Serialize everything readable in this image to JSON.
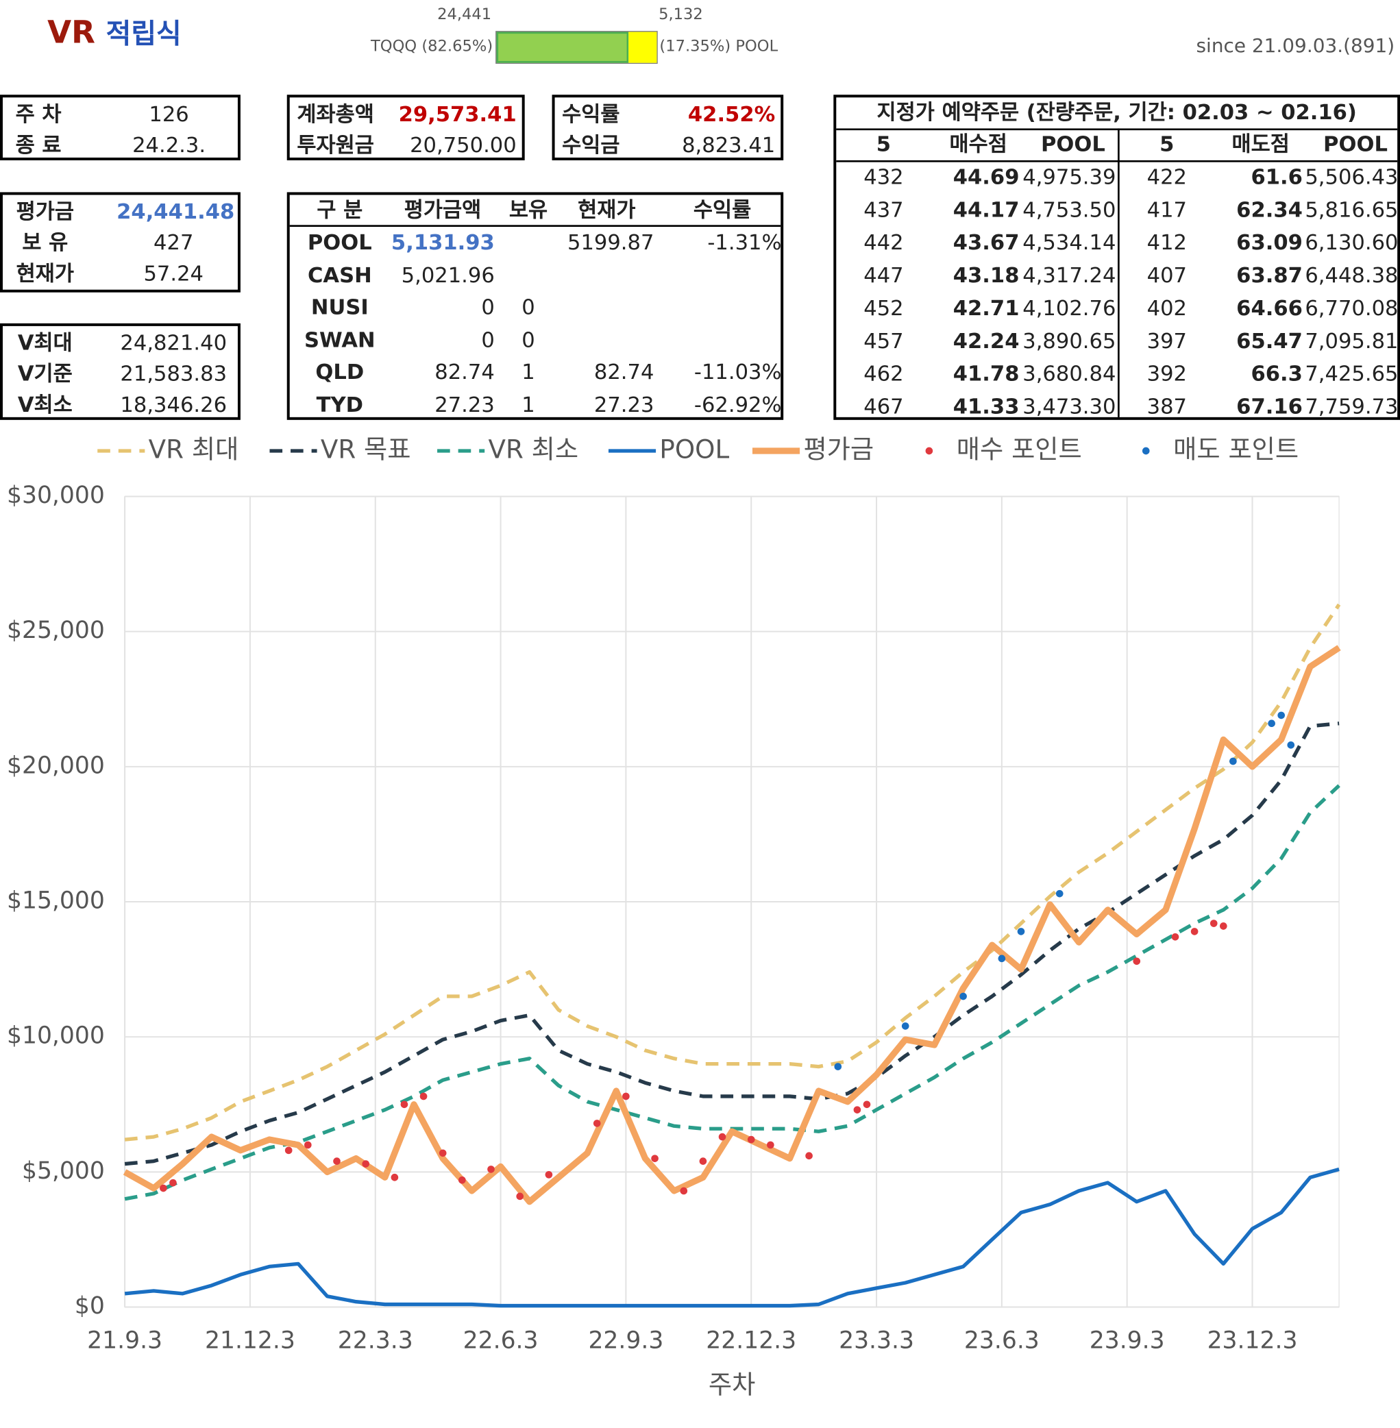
{
  "header": {
    "title_a": "VR",
    "title_b": "적립식",
    "since": "since 21.09.03.(891)"
  },
  "alloc": {
    "left_value": "24,441",
    "left_label": "TQQQ (82.65%)",
    "left_pct": 82.65,
    "left_color": "#92d050",
    "right_value": "5,132",
    "right_label": "(17.35%) POOL",
    "right_pct": 17.35,
    "right_color": "#ffff00"
  },
  "boxes": [
    {
      "rows": [
        {
          "label": "주 차",
          "value": "126"
        },
        {
          "label": "종 료",
          "value": "24.2.3."
        }
      ]
    },
    {
      "rows": [
        {
          "label": "계좌총액",
          "value": "29,573.41",
          "color": "#c00000"
        },
        {
          "label": "투자원금",
          "value": "20,750.00"
        }
      ]
    },
    {
      "rows": [
        {
          "label": "수익률",
          "value": "42.52%",
          "color": "#c00000"
        },
        {
          "label": "수익금",
          "value": "8,823.41"
        }
      ]
    },
    {
      "rows": [
        {
          "label": "평가금",
          "value": "24,441.48",
          "color": "#4472c4"
        },
        {
          "label": "보 유",
          "value": "427"
        },
        {
          "label": "현재가",
          "value": "57.24"
        }
      ]
    },
    {
      "rows": [
        {
          "label": "V최대",
          "value": "24,821.40"
        },
        {
          "label": "V기준",
          "value": "21,583.83"
        },
        {
          "label": "V최소",
          "value": "18,346.26"
        }
      ]
    }
  ],
  "holdings": {
    "header": [
      "구 분",
      "평가금액",
      "보유",
      "현재가",
      "수익률"
    ],
    "rows": [
      {
        "name": "POOL",
        "value": "5,131.93",
        "value_color": "#4472c4",
        "price": "5199.87",
        "ret": "-1.31%"
      },
      {
        "name": "CASH",
        "value": "5,021.96"
      },
      {
        "name": "NUSI",
        "value": "0",
        "hold": "0"
      },
      {
        "name": "SWAN",
        "value": "0",
        "hold": "0"
      },
      {
        "name": "QLD",
        "value": "82.74",
        "hold": "1",
        "price": "82.74",
        "ret": "-11.03%"
      },
      {
        "name": "TYD",
        "value": "27.23",
        "hold": "1",
        "price": "27.23",
        "ret": "-62.92%"
      }
    ]
  },
  "orders": {
    "title": "지정가 예약주문 (잔량주문, 기간: 02.03 ~ 02.16)",
    "header": [
      "5",
      "매수점",
      "POOL",
      "5",
      "매도점",
      "POOL"
    ],
    "rows": [
      [
        "432",
        "44.69",
        "4,975.39",
        "422",
        "61.6",
        "5,506.43"
      ],
      [
        "437",
        "44.17",
        "4,753.50",
        "417",
        "62.34",
        "5,816.65"
      ],
      [
        "442",
        "43.67",
        "4,534.14",
        "412",
        "63.09",
        "6,130.60"
      ],
      [
        "447",
        "43.18",
        "4,317.24",
        "407",
        "63.87",
        "6,448.38"
      ],
      [
        "452",
        "42.71",
        "4,102.76",
        "402",
        "64.66",
        "6,770.08"
      ],
      [
        "457",
        "42.24",
        "3,890.65",
        "397",
        "65.47",
        "7,095.81"
      ],
      [
        "462",
        "41.78",
        "3,680.84",
        "392",
        "66.3",
        "7,425.65"
      ],
      [
        "467",
        "41.33",
        "3,473.30",
        "387",
        "67.16",
        "7,759.73"
      ]
    ]
  },
  "chart_data": {
    "type": "line",
    "x_label": "주차",
    "grid": true,
    "xlim": [
      0,
      126
    ],
    "xticks": [
      {
        "value": 0,
        "label": "21.9.3"
      },
      {
        "value": 13,
        "label": "21.12.3"
      },
      {
        "value": 26,
        "label": "22.3.3"
      },
      {
        "value": 39,
        "label": "22.6.3"
      },
      {
        "value": 52,
        "label": "22.9.3"
      },
      {
        "value": 65,
        "label": "22.12.3"
      },
      {
        "value": 78,
        "label": "23.3.3"
      },
      {
        "value": 91,
        "label": "23.6.3"
      },
      {
        "value": 104,
        "label": "23.9.3"
      },
      {
        "value": 117,
        "label": "23.12.3"
      }
    ],
    "ylim": [
      0,
      30000
    ],
    "yticks": [
      {
        "value": 0,
        "label": "$0"
      },
      {
        "value": 5000,
        "label": "$5,000"
      },
      {
        "value": 10000,
        "label": "$10,000"
      },
      {
        "value": 15000,
        "label": "$15,000"
      },
      {
        "value": 20000,
        "label": "$20,000"
      },
      {
        "value": 25000,
        "label": "$25,000"
      },
      {
        "value": 30000,
        "label": "$30,000"
      }
    ],
    "x": [
      0,
      3,
      6,
      9,
      12,
      15,
      18,
      21,
      24,
      27,
      30,
      33,
      36,
      39,
      42,
      45,
      48,
      51,
      54,
      57,
      60,
      63,
      66,
      69,
      72,
      75,
      78,
      81,
      84,
      87,
      90,
      93,
      96,
      99,
      102,
      105,
      108,
      111,
      114,
      117,
      120,
      123,
      126
    ],
    "series": [
      {
        "name": "VR 최대",
        "color": "#e6c370",
        "style": "dashed",
        "values": [
          6200,
          6300,
          6600,
          7000,
          7600,
          8000,
          8400,
          8900,
          9500,
          10100,
          10800,
          11500,
          11500,
          11900,
          12400,
          11000,
          10400,
          10000,
          9500,
          9200,
          9000,
          9000,
          9000,
          9000,
          8900,
          9100,
          9800,
          10700,
          11500,
          12400,
          13200,
          14200,
          15200,
          16100,
          16800,
          17600,
          18400,
          19200,
          19900,
          20900,
          22400,
          24400,
          26000
        ]
      },
      {
        "name": "VR 목표",
        "color": "#263a4a",
        "style": "dashed",
        "values": [
          5300,
          5400,
          5700,
          6000,
          6500,
          6900,
          7200,
          7700,
          8200,
          8700,
          9300,
          9900,
          10200,
          10600,
          10800,
          9500,
          9000,
          8700,
          8300,
          8000,
          7800,
          7800,
          7800,
          7800,
          7700,
          7900,
          8500,
          9300,
          10000,
          10800,
          11500,
          12300,
          13200,
          14000,
          14600,
          15300,
          16000,
          16700,
          17300,
          18200,
          19500,
          21500,
          21600
        ]
      },
      {
        "name": "VR 최소",
        "color": "#2a9d8a",
        "style": "dashed",
        "values": [
          4000,
          4200,
          4700,
          5100,
          5500,
          5900,
          6100,
          6500,
          6900,
          7300,
          7800,
          8400,
          8700,
          9000,
          9200,
          8200,
          7600,
          7300,
          7000,
          6700,
          6600,
          6600,
          6600,
          6600,
          6500,
          6700,
          7300,
          7900,
          8500,
          9200,
          9800,
          10500,
          11200,
          11900,
          12400,
          13000,
          13600,
          14200,
          14700,
          15500,
          16600,
          18300,
          19300
        ]
      },
      {
        "name": "POOL",
        "color": "#1a6fc2",
        "style": "solid",
        "values": [
          500,
          600,
          500,
          800,
          1200,
          1500,
          1600,
          400,
          200,
          100,
          100,
          100,
          100,
          50,
          50,
          50,
          50,
          50,
          50,
          50,
          50,
          50,
          50,
          50,
          100,
          500,
          700,
          900,
          1200,
          1500,
          2500,
          3500,
          3800,
          4300,
          4600,
          3900,
          4300,
          2700,
          1600,
          2900,
          3500,
          4800,
          5100
        ]
      },
      {
        "name": "평가금",
        "color": "#f4a460",
        "style": "thick",
        "values": [
          5000,
          4400,
          5300,
          6300,
          5800,
          6200,
          6000,
          5000,
          5500,
          4800,
          7500,
          5500,
          4300,
          5200,
          3900,
          4800,
          5700,
          8000,
          5500,
          4300,
          4800,
          6500,
          6000,
          5500,
          8000,
          7600,
          8600,
          9900,
          9700,
          11800,
          13400,
          12500,
          14900,
          13500,
          14700,
          13800,
          14700,
          17700,
          21000,
          20000,
          21000,
          23700,
          24400
        ]
      },
      {
        "name": "매수 포인트",
        "color": "#e0393e",
        "style": "points",
        "x": [
          4,
          5,
          17,
          19,
          22,
          25,
          28,
          29,
          31,
          33,
          35,
          38,
          41,
          44,
          49,
          52,
          55,
          58,
          60,
          62,
          65,
          67,
          71,
          76,
          77,
          105,
          109,
          111,
          113,
          114
        ],
        "values": [
          4400,
          4600,
          5800,
          6000,
          5400,
          5300,
          4800,
          7500,
          7800,
          5700,
          4700,
          5100,
          4100,
          4900,
          6800,
          7800,
          5500,
          4300,
          5400,
          6300,
          6200,
          6000,
          5600,
          7300,
          7500,
          12800,
          13700,
          13900,
          14200,
          14100
        ]
      },
      {
        "name": "매도 포인트",
        "color": "#1a6fc2",
        "style": "points",
        "x": [
          74,
          81,
          87,
          91,
          93,
          97,
          115,
          119,
          120,
          121
        ],
        "values": [
          8900,
          10400,
          11500,
          12900,
          13900,
          15300,
          20200,
          21600,
          21900,
          20800
        ]
      }
    ]
  }
}
